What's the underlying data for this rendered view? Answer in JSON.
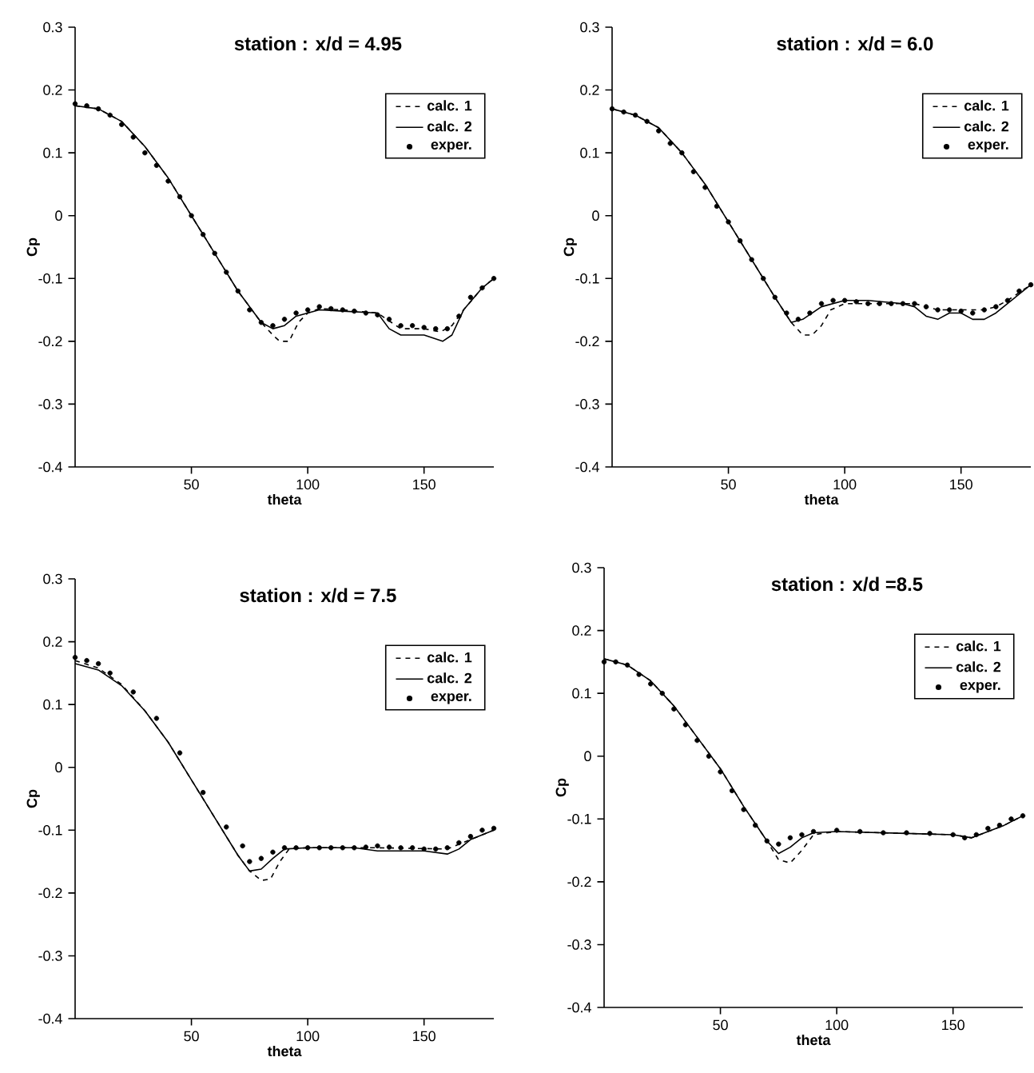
{
  "chart_data": [
    {
      "type": "line",
      "title": "station : x/d = 4.95",
      "xlabel": "theta",
      "ylabel": "Cp",
      "xlim": [
        0,
        180
      ],
      "ylim": [
        -0.4,
        0.3
      ],
      "xticks": [
        50,
        100,
        150
      ],
      "yticks": [
        -0.4,
        -0.3,
        -0.2,
        -0.1,
        0,
        0.1,
        0.2,
        0.3
      ],
      "legend": "top right",
      "series": [
        {
          "name": "calc. 1",
          "color": "#000000",
          "type": "line",
          "line_style": "dashed",
          "x": [
            0,
            10,
            20,
            30,
            40,
            50,
            60,
            70,
            80,
            85,
            88,
            92,
            96,
            100,
            105,
            115,
            130,
            140,
            150,
            157,
            162,
            167,
            175,
            180
          ],
          "values": [
            0.175,
            0.17,
            0.15,
            0.11,
            0.06,
            0.0,
            -0.06,
            -0.12,
            -0.17,
            -0.19,
            -0.2,
            -0.2,
            -0.17,
            -0.155,
            -0.148,
            -0.15,
            -0.155,
            -0.18,
            -0.18,
            -0.185,
            -0.175,
            -0.15,
            -0.115,
            -0.1
          ]
        },
        {
          "name": "calc. 2",
          "color": "#000000",
          "type": "line",
          "line_style": "solid",
          "x": [
            0,
            10,
            20,
            30,
            40,
            50,
            60,
            70,
            80,
            85,
            90,
            95,
            105,
            115,
            130,
            135,
            140,
            150,
            158,
            162,
            167,
            175,
            180
          ],
          "values": [
            0.175,
            0.17,
            0.15,
            0.11,
            0.06,
            0.0,
            -0.06,
            -0.12,
            -0.17,
            -0.18,
            -0.175,
            -0.16,
            -0.15,
            -0.152,
            -0.155,
            -0.18,
            -0.19,
            -0.19,
            -0.2,
            -0.19,
            -0.15,
            -0.115,
            -0.1
          ]
        },
        {
          "name": "exper.",
          "color": "#000000",
          "type": "scatter",
          "marker": "circle",
          "x": [
            0,
            5,
            10,
            15,
            20,
            25,
            30,
            35,
            40,
            45,
            50,
            55,
            60,
            65,
            70,
            75,
            80,
            85,
            90,
            95,
            100,
            105,
            110,
            115,
            120,
            125,
            130,
            135,
            140,
            145,
            150,
            155,
            160,
            165,
            170,
            175,
            180
          ],
          "values": [
            0.178,
            0.175,
            0.17,
            0.16,
            0.145,
            0.125,
            0.1,
            0.08,
            0.055,
            0.03,
            0.0,
            -0.03,
            -0.06,
            -0.09,
            -0.12,
            -0.15,
            -0.17,
            -0.175,
            -0.165,
            -0.155,
            -0.15,
            -0.145,
            -0.148,
            -0.15,
            -0.152,
            -0.155,
            -0.158,
            -0.165,
            -0.175,
            -0.175,
            -0.178,
            -0.18,
            -0.18,
            -0.16,
            -0.13,
            -0.115,
            -0.1
          ]
        }
      ]
    },
    {
      "type": "line",
      "title": "station : x/d = 6.0",
      "xlabel": "theta",
      "ylabel": "Cp",
      "xlim": [
        0,
        180
      ],
      "ylim": [
        -0.4,
        0.3
      ],
      "xticks": [
        50,
        100,
        150
      ],
      "yticks": [
        -0.4,
        -0.3,
        -0.2,
        -0.1,
        0,
        0.1,
        0.2,
        0.3
      ],
      "legend": "top right",
      "series": [
        {
          "name": "calc. 1",
          "color": "#000000",
          "type": "line",
          "line_style": "dashed",
          "x": [
            0,
            10,
            20,
            30,
            40,
            50,
            60,
            70,
            77,
            82,
            86,
            90,
            94,
            100,
            110,
            130,
            140,
            150,
            160,
            165,
            170,
            180
          ],
          "values": [
            0.17,
            0.16,
            0.14,
            0.1,
            0.05,
            -0.01,
            -0.07,
            -0.13,
            -0.17,
            -0.19,
            -0.19,
            -0.175,
            -0.15,
            -0.14,
            -0.14,
            -0.14,
            -0.15,
            -0.15,
            -0.15,
            -0.145,
            -0.135,
            -0.11
          ]
        },
        {
          "name": "calc. 2",
          "color": "#000000",
          "type": "line",
          "line_style": "solid",
          "x": [
            0,
            10,
            20,
            30,
            40,
            50,
            60,
            70,
            77,
            82,
            90,
            100,
            110,
            125,
            130,
            135,
            140,
            145,
            150,
            155,
            160,
            165,
            170,
            180
          ],
          "values": [
            0.17,
            0.16,
            0.14,
            0.1,
            0.05,
            -0.01,
            -0.07,
            -0.13,
            -0.17,
            -0.165,
            -0.145,
            -0.135,
            -0.135,
            -0.14,
            -0.145,
            -0.16,
            -0.165,
            -0.155,
            -0.155,
            -0.165,
            -0.165,
            -0.155,
            -0.14,
            -0.11
          ]
        },
        {
          "name": "exper.",
          "color": "#000000",
          "type": "scatter",
          "marker": "circle",
          "x": [
            0,
            5,
            10,
            15,
            20,
            25,
            30,
            35,
            40,
            45,
            50,
            55,
            60,
            65,
            70,
            75,
            80,
            85,
            90,
            95,
            100,
            105,
            110,
            115,
            120,
            125,
            130,
            135,
            140,
            145,
            150,
            155,
            160,
            165,
            170,
            175,
            180
          ],
          "values": [
            0.17,
            0.165,
            0.16,
            0.15,
            0.135,
            0.115,
            0.1,
            0.07,
            0.045,
            0.015,
            -0.01,
            -0.04,
            -0.07,
            -0.1,
            -0.13,
            -0.155,
            -0.165,
            -0.155,
            -0.14,
            -0.135,
            -0.135,
            -0.137,
            -0.14,
            -0.14,
            -0.14,
            -0.14,
            -0.14,
            -0.145,
            -0.15,
            -0.15,
            -0.152,
            -0.155,
            -0.15,
            -0.145,
            -0.135,
            -0.12,
            -0.11
          ]
        }
      ]
    },
    {
      "type": "line",
      "title": "station : x/d = 7.5",
      "xlabel": "theta",
      "ylabel": "Cp",
      "xlim": [
        0,
        180
      ],
      "ylim": [
        -0.4,
        0.3
      ],
      "xticks": [
        50,
        100,
        150
      ],
      "yticks": [
        -0.4,
        -0.3,
        -0.2,
        -0.1,
        0,
        0.1,
        0.2,
        0.3
      ],
      "legend": "top right",
      "series": [
        {
          "name": "calc. 1",
          "color": "#000000",
          "type": "line",
          "line_style": "dashed",
          "x": [
            0,
            10,
            20,
            30,
            40,
            50,
            60,
            70,
            75,
            80,
            84,
            88,
            92,
            100,
            130,
            160,
            170,
            180
          ],
          "values": [
            0.17,
            0.158,
            0.132,
            0.09,
            0.04,
            -0.02,
            -0.08,
            -0.14,
            -0.165,
            -0.18,
            -0.178,
            -0.15,
            -0.13,
            -0.128,
            -0.128,
            -0.13,
            -0.115,
            -0.1
          ]
        },
        {
          "name": "calc. 2",
          "color": "#000000",
          "type": "line",
          "line_style": "solid",
          "x": [
            0,
            10,
            20,
            30,
            40,
            50,
            60,
            70,
            75,
            80,
            85,
            90,
            100,
            120,
            130,
            150,
            160,
            165,
            170,
            180
          ],
          "values": [
            0.165,
            0.155,
            0.13,
            0.09,
            0.04,
            -0.02,
            -0.08,
            -0.14,
            -0.165,
            -0.162,
            -0.145,
            -0.13,
            -0.128,
            -0.128,
            -0.133,
            -0.133,
            -0.138,
            -0.13,
            -0.115,
            -0.1
          ]
        },
        {
          "name": "exper.",
          "color": "#000000",
          "type": "scatter",
          "marker": "circle",
          "x": [
            0,
            5,
            10,
            15,
            25,
            35,
            45,
            55,
            65,
            72,
            75,
            80,
            85,
            90,
            95,
            100,
            105,
            110,
            115,
            120,
            125,
            130,
            135,
            140,
            145,
            150,
            155,
            160,
            165,
            170,
            175,
            180
          ],
          "values": [
            0.175,
            0.17,
            0.165,
            0.15,
            0.12,
            0.078,
            0.023,
            -0.04,
            -0.095,
            -0.125,
            -0.15,
            -0.145,
            -0.135,
            -0.128,
            -0.128,
            -0.128,
            -0.128,
            -0.128,
            -0.128,
            -0.128,
            -0.127,
            -0.125,
            -0.127,
            -0.128,
            -0.128,
            -0.13,
            -0.13,
            -0.128,
            -0.12,
            -0.11,
            -0.1,
            -0.097
          ]
        }
      ]
    },
    {
      "type": "line",
      "title": "station : x/d =8.5",
      "xlabel": "theta",
      "ylabel": "Cp",
      "xlim": [
        0,
        180
      ],
      "ylim": [
        -0.4,
        0.3
      ],
      "xticks": [
        50,
        100,
        150
      ],
      "yticks": [
        -0.4,
        -0.3,
        -0.2,
        -0.1,
        0,
        0.1,
        0.2,
        0.3
      ],
      "legend": "top right",
      "series": [
        {
          "name": "calc. 1",
          "color": "#000000",
          "type": "line",
          "line_style": "dashed",
          "x": [
            0,
            10,
            20,
            30,
            40,
            50,
            60,
            70,
            75,
            80,
            85,
            90,
            100,
            130,
            150,
            158,
            165,
            172,
            180
          ],
          "values": [
            0.155,
            0.145,
            0.12,
            0.08,
            0.03,
            -0.02,
            -0.08,
            -0.135,
            -0.165,
            -0.17,
            -0.15,
            -0.125,
            -0.12,
            -0.123,
            -0.125,
            -0.13,
            -0.12,
            -0.11,
            -0.095
          ]
        },
        {
          "name": "calc. 2",
          "color": "#000000",
          "type": "line",
          "line_style": "solid",
          "x": [
            0,
            10,
            20,
            30,
            40,
            50,
            60,
            70,
            75,
            80,
            85,
            90,
            100,
            130,
            150,
            158,
            165,
            172,
            180
          ],
          "values": [
            0.155,
            0.145,
            0.12,
            0.08,
            0.03,
            -0.02,
            -0.08,
            -0.135,
            -0.155,
            -0.145,
            -0.13,
            -0.122,
            -0.12,
            -0.123,
            -0.125,
            -0.13,
            -0.12,
            -0.11,
            -0.095
          ]
        },
        {
          "name": "exper.",
          "color": "#000000",
          "type": "scatter",
          "marker": "circle",
          "x": [
            0,
            5,
            10,
            15,
            20,
            25,
            30,
            35,
            40,
            45,
            50,
            55,
            60,
            65,
            70,
            75,
            80,
            85,
            90,
            100,
            110,
            120,
            130,
            140,
            150,
            155,
            160,
            165,
            170,
            175,
            180
          ],
          "values": [
            0.15,
            0.15,
            0.145,
            0.13,
            0.115,
            0.1,
            0.075,
            0.05,
            0.025,
            0.0,
            -0.025,
            -0.055,
            -0.085,
            -0.11,
            -0.135,
            -0.14,
            -0.13,
            -0.125,
            -0.12,
            -0.118,
            -0.12,
            -0.122,
            -0.122,
            -0.123,
            -0.125,
            -0.13,
            -0.125,
            -0.115,
            -0.11,
            -0.1,
            -0.095
          ]
        }
      ]
    }
  ]
}
